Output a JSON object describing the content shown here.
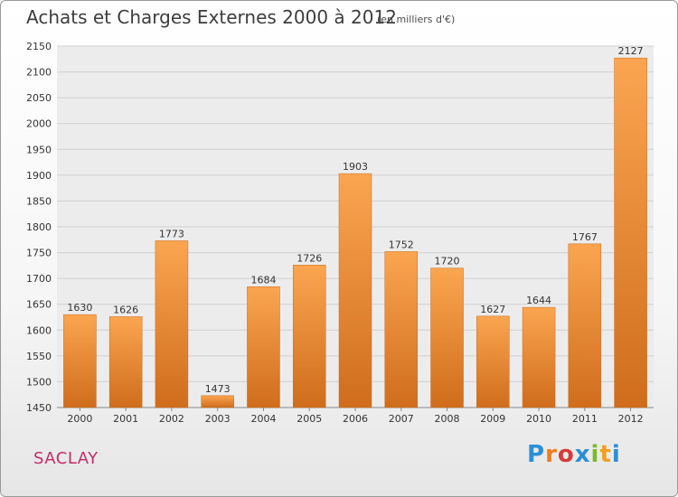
{
  "header": {
    "title": "Achats et Charges Externes 2000 à 2012",
    "subtitle": "(en milliers d'€)"
  },
  "footer": {
    "commune": "SACLAY",
    "logo_letters": [
      "P",
      "r",
      "o",
      "x",
      "i",
      "t",
      "i"
    ]
  },
  "colors": {
    "bar_top": "#fba551",
    "bar_bottom": "#cf6d1c",
    "grid": "#d0d0d0",
    "axis_text": "#333333"
  },
  "chart_data": {
    "type": "bar",
    "title": "Achats et Charges Externes 2000 à 2012",
    "subtitle": "(en milliers d'€)",
    "categories": [
      "2000",
      "2001",
      "2002",
      "2003",
      "2004",
      "2005",
      "2006",
      "2007",
      "2008",
      "2009",
      "2010",
      "2011",
      "2012"
    ],
    "values": [
      1630,
      1626,
      1773,
      1473,
      1684,
      1726,
      1903,
      1752,
      1720,
      1627,
      1644,
      1767,
      2127
    ],
    "ylim": [
      1450,
      2150
    ],
    "yticks": [
      1450,
      1500,
      1550,
      1600,
      1650,
      1700,
      1750,
      1800,
      1850,
      1900,
      1950,
      2000,
      2050,
      2100,
      2150
    ],
    "grid": true,
    "data_labels": true
  }
}
